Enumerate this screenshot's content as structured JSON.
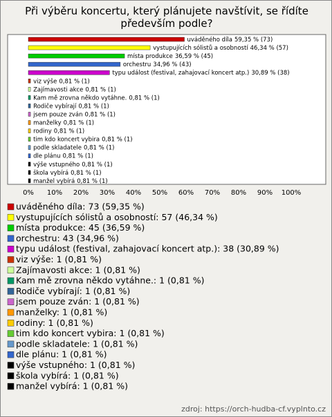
{
  "chart_data": {
    "type": "bar",
    "orientation": "horizontal",
    "title": "Při výběru koncertu, který plánujete navštívit, se řídíte především podle?",
    "categories": [
      "uváděného díla",
      "vystupujících sólistů a osobností",
      "místa produkce",
      "orchestru",
      "typu událost (festival, zahajovací koncert atp.)",
      "viz výše",
      "Zajímavosti akce",
      "Kam mě zrovna někdo vytáhne.",
      "Rodiče vybírají",
      "jsem pouze zván",
      "manželky",
      "rodiny",
      "tim kdo koncert vybira",
      "podle skladatele",
      "dle plánu",
      "výše vstupného",
      "škola vybírá",
      "manžel vybírá"
    ],
    "values": [
      59.35,
      46.34,
      36.59,
      34.96,
      30.89,
      0.81,
      0.81,
      0.81,
      0.81,
      0.81,
      0.81,
      0.81,
      0.81,
      0.81,
      0.81,
      0.81,
      0.81,
      0.81
    ],
    "value_labels": [
      "59,35 % (73)",
      "46,34 % (57)",
      "36,59 % (45)",
      "34,96 % (43)",
      "30,89 % (38)",
      "0,81 % (1)",
      "0,81 % (1)",
      "0,81 % (1)",
      "0,81 % (1)",
      "0,81 % (1)",
      "0,81 % (1)",
      "0,81 % (1)",
      "0,81 % (1)",
      "0,81 % (1)",
      "0,81 % (1)",
      "0,81 % (1)",
      "0,81 % (1)",
      "0,81 % (1)"
    ],
    "legend_labels": [
      "uváděného díla: 73 (59,35 %)",
      "vystupujících sólistů a osobností: 57 (46,34 %)",
      "místa produkce: 45 (36,59 %)",
      "orchestru: 43 (34,96 %)",
      "typu událost (festival, zahajovací koncert atp.): 38 (30,89 %)",
      "viz výše: 1 (0,81 %)",
      "Zajímavosti akce: 1 (0,81 %)",
      "Kam mě zrovna někdo vytáhne.: 1 (0,81 %)",
      "Rodiče vybírají: 1 (0,81 %)",
      "jsem pouze zván: 1 (0,81 %)",
      "manželky: 1 (0,81 %)",
      "rodiny: 1 (0,81 %)",
      "tim kdo koncert vybira: 1 (0,81 %)",
      "podle skladatele: 1 (0,81 %)",
      "dle plánu: 1 (0,81 %)",
      "výše vstupného: 1 (0,81 %)",
      "škola vybírá: 1 (0,81 %)",
      "manžel vybírá: 1 (0,81 %)"
    ],
    "colors": [
      "#cc0000",
      "#ffff00",
      "#00cc00",
      "#3366cc",
      "#cc00cc",
      "#cc3300",
      "#ccff99",
      "#009966",
      "#336699",
      "#cc66cc",
      "#ff9900",
      "#ffcc00",
      "#66cc33",
      "#6699cc",
      "#3366cc",
      "#000000",
      "#000000",
      "#000000"
    ],
    "xlim": [
      0,
      100
    ],
    "xticks": [
      {
        "value": 0,
        "label": "0%"
      },
      {
        "value": 10,
        "label": "10%"
      },
      {
        "value": 20,
        "label": "20%"
      },
      {
        "value": 30,
        "label": "30%"
      },
      {
        "value": 40,
        "label": "40%"
      },
      {
        "value": 50,
        "label": "50%"
      },
      {
        "value": 60,
        "label": "60%"
      },
      {
        "value": 70,
        "label": "70%"
      },
      {
        "value": 80,
        "label": "80%"
      },
      {
        "value": 90,
        "label": "90%"
      },
      {
        "value": 100,
        "label": "100%"
      }
    ],
    "source": "zdroj: https://orch-hudba-cf.vyplnto.cz"
  }
}
